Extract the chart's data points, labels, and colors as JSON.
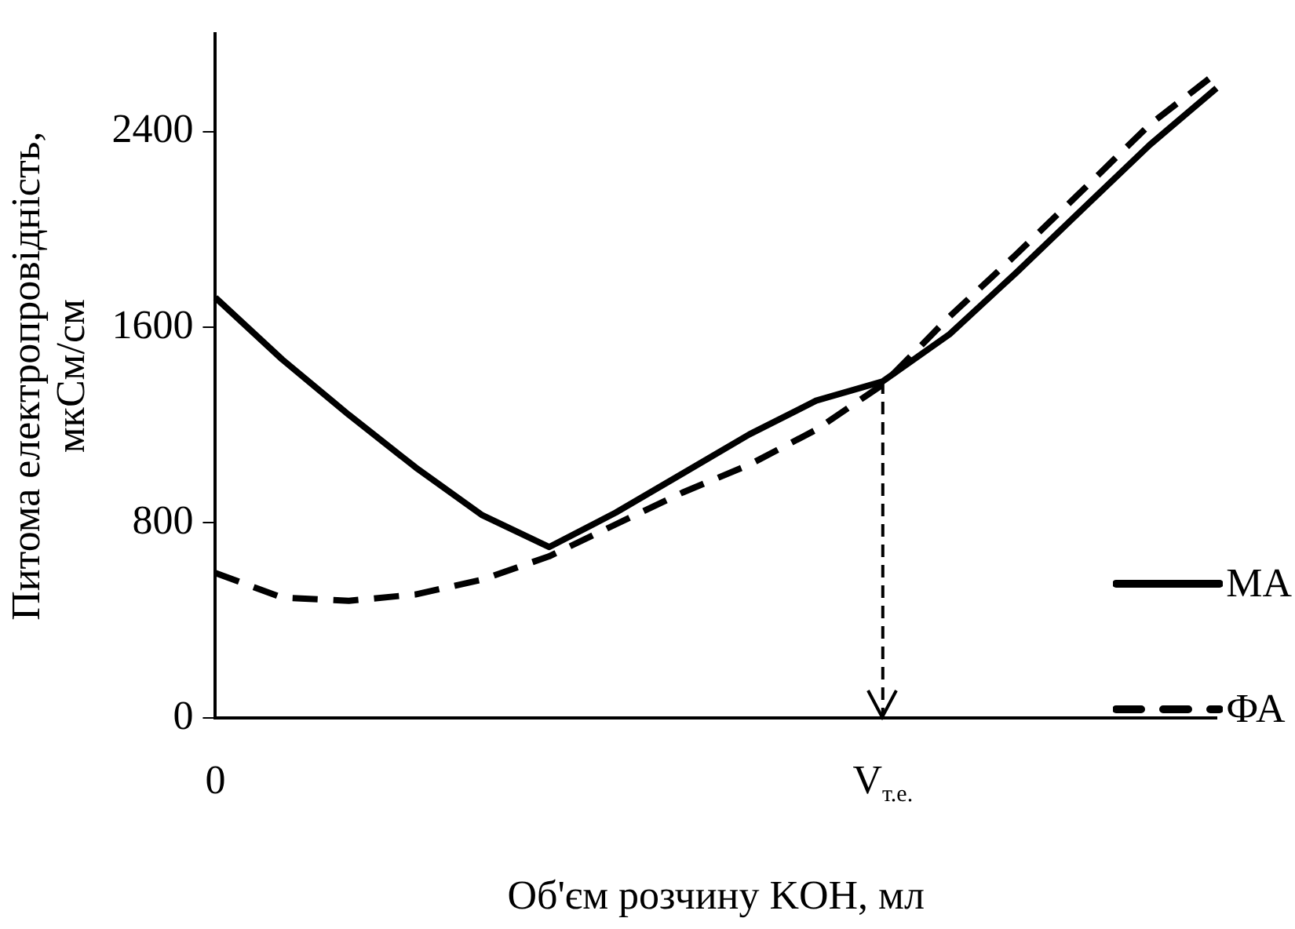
{
  "chart_data": {
    "type": "line",
    "xlabel": "Об'єм розчину KOH, мл",
    "ylabel": [
      "Питома електропровідність,",
      "мкСм/см"
    ],
    "categories": [
      "0",
      null,
      null,
      null,
      null,
      null,
      null,
      null,
      null,
      null,
      "V$_{т.е.}$",
      null,
      null,
      null,
      null,
      null
    ],
    "ylim": [
      0,
      2800
    ],
    "yticks": [
      0,
      800,
      1600,
      2400
    ],
    "grid": false,
    "legend": "bottom right",
    "marker": "none",
    "series": [
      {
        "name": "MA",
        "color": "#000000",
        "line_style": "solid",
        "values": [
          1721,
          1468,
          1241,
          1026,
          830,
          700,
          841,
          1001,
          1161,
          1299,
          1378,
          1571,
          1823,
          2085,
          2346,
          2578
        ]
      },
      {
        "name": "ФА",
        "color": "#000000",
        "line_style": "dashed",
        "values": [
          594,
          493,
          480,
          506,
          567,
          662,
          793,
          923,
          1037,
          1180,
          1365,
          1643,
          1898,
          2162,
          2429,
          2640
        ]
      }
    ],
    "ref_lines": [
      {
        "axis": "x",
        "value": "V$_{т.е.}$",
        "line_style": "dashed",
        "color": "#000000"
      }
    ]
  }
}
